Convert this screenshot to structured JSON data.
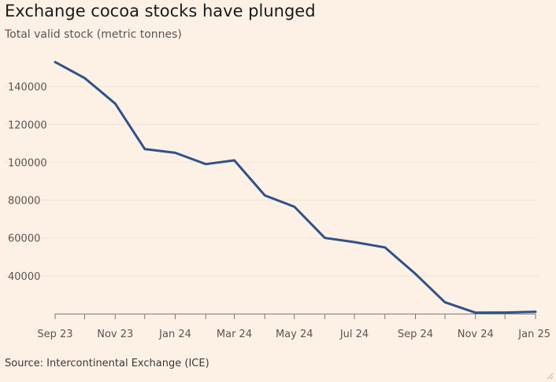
{
  "title": "Exchange cocoa stocks have plunged",
  "source": "Source: Intercontinental Exchange (ICE)",
  "colors": {
    "background": "#fdf1e6",
    "line": "#2f5288",
    "grid": "#f1e2d3",
    "axis": "#7d7874",
    "text": "#5a5551"
  },
  "chart_data": {
    "type": "line",
    "title": "Exchange cocoa stocks have plunged",
    "ylabel": "Total valid stock (metric tonnes)",
    "xlabel": "",
    "ylim": [
      20000,
      160000
    ],
    "xlim": [
      "2023-09-01",
      "2025-01-01"
    ],
    "y_ticks": [
      40000,
      60000,
      80000,
      100000,
      120000,
      140000
    ],
    "x_ticks": [
      {
        "date": "2023-09-01",
        "label": "Sep 23"
      },
      {
        "date": "2023-11-01",
        "label": "Nov 23"
      },
      {
        "date": "2024-01-01",
        "label": "Jan 24"
      },
      {
        "date": "2024-03-01",
        "label": "Mar 24"
      },
      {
        "date": "2024-05-01",
        "label": "May 24"
      },
      {
        "date": "2024-07-01",
        "label": "Jul 24"
      },
      {
        "date": "2024-09-01",
        "label": "Sep 24"
      },
      {
        "date": "2024-11-01",
        "label": "Nov 24"
      },
      {
        "date": "2025-01-01",
        "label": "Jan 25"
      }
    ],
    "grid": true,
    "legend": "none",
    "series": [
      {
        "x": [
          "2023-09-01",
          "2023-10-01",
          "2023-11-01",
          "2023-12-01",
          "2024-01-01",
          "2024-02-01",
          "2024-03-01",
          "2024-04-01",
          "2024-05-01",
          "2024-06-01",
          "2024-07-01",
          "2024-08-01",
          "2024-09-01",
          "2024-10-01",
          "2024-11-01",
          "2024-12-01",
          "2025-01-01"
        ],
        "y": [
          153000,
          144500,
          131000,
          107000,
          105000,
          99000,
          101000,
          82500,
          76500,
          60000,
          57800,
          55000,
          41000,
          26000,
          20500,
          20600,
          21000
        ]
      }
    ]
  }
}
